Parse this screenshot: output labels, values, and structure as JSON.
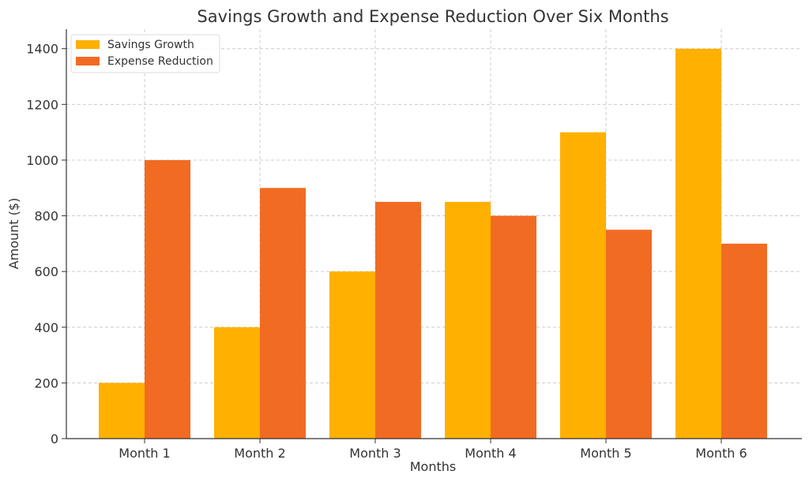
{
  "chart_data": {
    "type": "bar",
    "title": "Savings Growth and Expense Reduction Over Six Months",
    "xlabel": "Months",
    "ylabel": "Amount ($)",
    "categories": [
      "Month 1",
      "Month 2",
      "Month 3",
      "Month 4",
      "Month 5",
      "Month 6"
    ],
    "series": [
      {
        "name": "Savings Growth",
        "values": [
          200,
          400,
          600,
          850,
          1100,
          1400
        ],
        "color": "#FFB000"
      },
      {
        "name": "Expense Reduction",
        "values": [
          1000,
          900,
          850,
          800,
          750,
          700
        ],
        "color": "#F26B22"
      }
    ],
    "ylim": [
      0,
      1470
    ],
    "yticks": [
      0,
      200,
      400,
      600,
      800,
      1000,
      1200,
      1400
    ],
    "grid": true,
    "legend_position": "top-left"
  }
}
